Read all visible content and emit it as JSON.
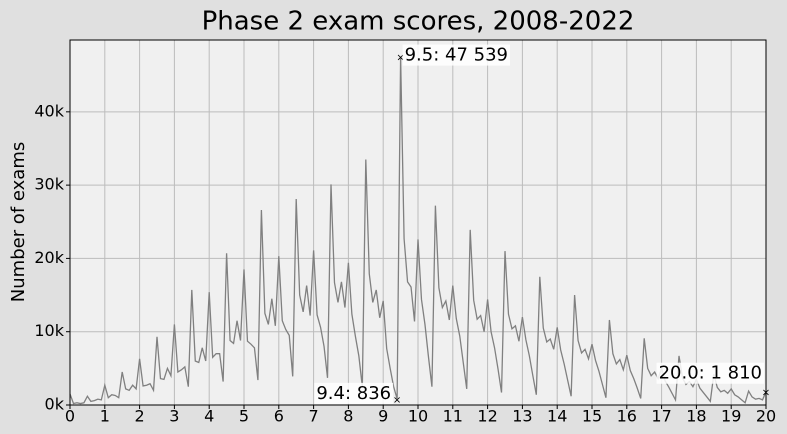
{
  "chart_data": {
    "type": "line",
    "title": "Phase 2 exam scores, 2008-2022",
    "y_label": "Number of exams",
    "x": [
      0.0,
      0.1,
      0.2,
      0.3,
      0.4,
      0.5,
      0.6,
      0.7,
      0.8,
      0.9,
      1.0,
      1.1,
      1.2,
      1.3,
      1.4,
      1.5,
      1.6,
      1.7,
      1.8,
      1.9,
      2.0,
      2.1,
      2.2,
      2.3,
      2.4,
      2.5,
      2.6,
      2.7,
      2.8,
      2.9,
      3.0,
      3.1,
      3.2,
      3.3,
      3.4,
      3.5,
      3.6,
      3.7,
      3.8,
      3.9,
      4.0,
      4.1,
      4.2,
      4.3,
      4.4,
      4.5,
      4.6,
      4.7,
      4.8,
      4.9,
      5.0,
      5.1,
      5.2,
      5.3,
      5.4,
      5.5,
      5.6,
      5.7,
      5.8,
      5.9,
      6.0,
      6.1,
      6.2,
      6.3,
      6.4,
      6.5,
      6.6,
      6.7,
      6.8,
      6.9,
      7.0,
      7.1,
      7.2,
      7.3,
      7.4,
      7.5,
      7.6,
      7.7,
      7.8,
      7.9,
      8.0,
      8.1,
      8.2,
      8.3,
      8.4,
      8.5,
      8.6,
      8.7,
      8.8,
      8.9,
      9.0,
      9.1,
      9.2,
      9.3,
      9.4,
      9.5,
      9.6,
      9.7,
      9.8,
      9.9,
      10.0,
      10.1,
      10.2,
      10.3,
      10.4,
      10.5,
      10.6,
      10.7,
      10.8,
      10.9,
      11.0,
      11.1,
      11.2,
      11.3,
      11.4,
      11.5,
      11.6,
      11.7,
      11.8,
      11.9,
      12.0,
      12.1,
      12.2,
      12.3,
      12.4,
      12.5,
      12.6,
      12.7,
      12.8,
      12.9,
      13.0,
      13.1,
      13.2,
      13.3,
      13.4,
      13.5,
      13.6,
      13.7,
      13.8,
      13.9,
      14.0,
      14.1,
      14.2,
      14.3,
      14.4,
      14.5,
      14.6,
      14.7,
      14.8,
      14.9,
      15.0,
      15.1,
      15.2,
      15.3,
      15.4,
      15.5,
      15.6,
      15.7,
      15.8,
      15.9,
      16.0,
      16.1,
      16.2,
      16.3,
      16.4,
      16.5,
      16.6,
      16.7,
      16.8,
      16.9,
      17.0,
      17.1,
      17.2,
      17.3,
      17.4,
      17.5,
      17.6,
      17.7,
      17.8,
      17.9,
      18.0,
      18.1,
      18.2,
      18.3,
      18.4,
      18.5,
      18.6,
      18.7,
      18.8,
      18.9,
      19.0,
      19.1,
      19.2,
      19.3,
      19.4,
      19.5,
      19.6,
      19.7,
      19.8,
      19.9,
      20.0
    ],
    "series": [
      {
        "color": "#808080",
        "values": [
          1500,
          200,
          300,
          200,
          300,
          1200,
          500,
          600,
          800,
          700,
          2700,
          1000,
          1400,
          1300,
          1000,
          4500,
          2200,
          2000,
          2700,
          2200,
          6300,
          2600,
          2700,
          2900,
          2000,
          9300,
          3600,
          3500,
          5000,
          4000,
          11000,
          4500,
          4800,
          5200,
          2500,
          15700,
          6000,
          5800,
          7800,
          6000,
          15400,
          6500,
          7000,
          7000,
          3200,
          20700,
          8800,
          8400,
          11500,
          8800,
          18500,
          8700,
          8300,
          7800,
          3400,
          26600,
          12500,
          11000,
          14500,
          10800,
          20300,
          11500,
          10300,
          9500,
          3900,
          28100,
          15000,
          12700,
          16300,
          12200,
          21100,
          12300,
          10600,
          8000,
          3700,
          30100,
          16700,
          14000,
          16800,
          13300,
          19400,
          12400,
          9400,
          6700,
          2500,
          33500,
          17900,
          14000,
          15700,
          11900,
          14200,
          7700,
          5000,
          2500,
          836,
          47539,
          22700,
          16800,
          16100,
          11400,
          22600,
          14400,
          11000,
          6600,
          2500,
          27200,
          16000,
          13300,
          14200,
          11600,
          16300,
          11800,
          9400,
          5800,
          2200,
          23900,
          14300,
          11700,
          12200,
          10000,
          14400,
          10000,
          7800,
          4900,
          1700,
          21000,
          12400,
          10400,
          10800,
          8700,
          12000,
          8900,
          6700,
          4000,
          1400,
          17500,
          10500,
          8600,
          9000,
          7600,
          10600,
          7500,
          5600,
          3400,
          1200,
          15000,
          8800,
          7100,
          7600,
          6300,
          8300,
          6100,
          4600,
          2800,
          1000,
          11600,
          7000,
          5600,
          6200,
          4800,
          6800,
          4700,
          3600,
          2300,
          900,
          9100,
          5000,
          4000,
          4500,
          3600,
          5000,
          3300,
          2500,
          1600,
          700,
          6700,
          3700,
          2800,
          3200,
          2500,
          3500,
          2300,
          1700,
          1100,
          500,
          4200,
          2400,
          1800,
          2000,
          1600,
          2200,
          1400,
          1100,
          700,
          300,
          1900,
          1100,
          800,
          900,
          700,
          1810
        ]
      }
    ],
    "annotations": [
      {
        "label": "9.5: 47 539",
        "x": 9.5,
        "y": 47539,
        "color": "#008000"
      },
      {
        "label": "9.4: 836",
        "x": 9.4,
        "y": 836,
        "color": "#d00000"
      },
      {
        "label": "20.0: 1 810",
        "x": 20.0,
        "y": 1810,
        "color": "#0000cc"
      }
    ],
    "xlim": [
      0,
      20
    ],
    "xticks": [
      0,
      1,
      2,
      3,
      4,
      5,
      6,
      7,
      8,
      9,
      10,
      11,
      12,
      13,
      14,
      15,
      16,
      17,
      18,
      19,
      20
    ],
    "ylim": [
      0,
      49800
    ],
    "yticks": [
      {
        "value": 0,
        "label": "0k"
      },
      {
        "value": 10000,
        "label": "10k"
      },
      {
        "value": 20000,
        "label": "20k"
      },
      {
        "value": 30000,
        "label": "30k"
      },
      {
        "value": 40000,
        "label": "40k"
      }
    ],
    "grid": true
  }
}
